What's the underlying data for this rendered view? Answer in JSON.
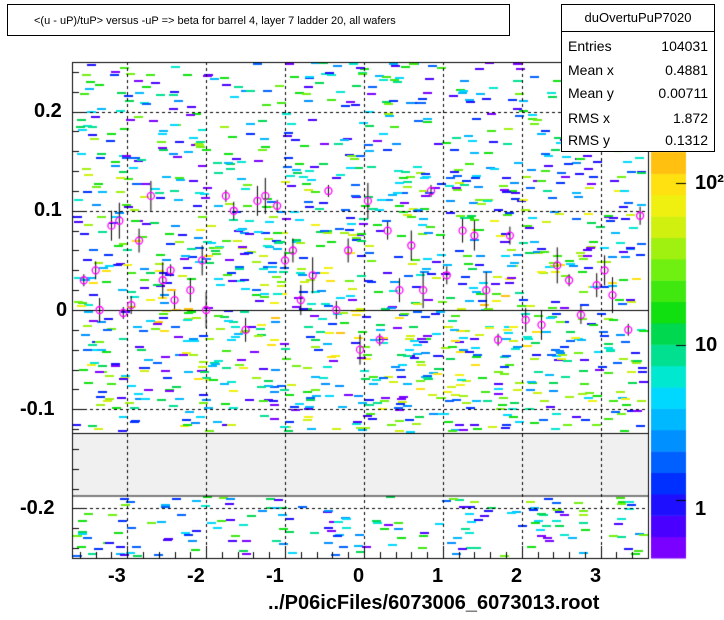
{
  "title": "<(u - uP)/tuP> versus  -uP => beta for barrel 4, layer 7 ladder 20, all wafers",
  "footer": "../P06icFiles/6073006_6073013.root",
  "stats": {
    "name": "duOvertuPuP7020",
    "rows": [
      {
        "key": "Entries",
        "value": "104031"
      },
      {
        "key": "Mean x",
        "value": "0.4881"
      },
      {
        "key": "Mean y",
        "value": "0.00711"
      },
      {
        "key": "RMS x",
        "value": "1.872"
      },
      {
        "key": "RMS y",
        "value": "0.1312"
      }
    ]
  },
  "colorbar": {
    "labels": [
      "1",
      "10",
      "10²"
    ],
    "colors": [
      "#7a00ff",
      "#4a00ff",
      "#1e10ff",
      "#0030ff",
      "#0060ff",
      "#0090ff",
      "#00b8ff",
      "#00d8ff",
      "#00e8d0",
      "#00e090",
      "#00d850",
      "#10e010",
      "#40e810",
      "#70f010",
      "#a0f010",
      "#d0f010",
      "#f0f010",
      "#ffe010",
      "#ffc010"
    ]
  },
  "chart_data": {
    "type": "heatmap",
    "title": "<(u - uP)/tuP> versus  -uP => beta for barrel 4, layer 7 ladder 20, all wafers",
    "xlim": [
      -3.7,
      3.6
    ],
    "ylim": [
      -0.25,
      0.25
    ],
    "xticks": [
      -3,
      -2,
      -1,
      0,
      1,
      2,
      3
    ],
    "yticks": [
      -0.2,
      -0.1,
      0,
      0.1,
      0.2
    ],
    "xtick_labels": [
      "-3",
      "-2",
      "-1",
      "0",
      "1",
      "2",
      "3"
    ],
    "ytick_labels": [
      "-0.2",
      "-0.1",
      "0",
      "0.1",
      "0.2"
    ],
    "grid": true,
    "z_scale": "log",
    "empty_band_y": [
      -0.187,
      -0.124
    ],
    "profile_points": [
      {
        "x": -3.55,
        "y": 0.03
      },
      {
        "x": -3.4,
        "y": 0.04
      },
      {
        "x": -3.35,
        "y": 0.0
      },
      {
        "x": -3.2,
        "y": 0.085
      },
      {
        "x": -3.1,
        "y": 0.09
      },
      {
        "x": -3.05,
        "y": -0.003
      },
      {
        "x": -2.95,
        "y": 0.005
      },
      {
        "x": -2.85,
        "y": 0.07
      },
      {
        "x": -2.7,
        "y": 0.115
      },
      {
        "x": -2.55,
        "y": 0.03
      },
      {
        "x": -2.45,
        "y": 0.04
      },
      {
        "x": -2.4,
        "y": 0.01
      },
      {
        "x": -2.2,
        "y": 0.02
      },
      {
        "x": -2.05,
        "y": 0.05
      },
      {
        "x": -2.0,
        "y": 0.0
      },
      {
        "x": -1.75,
        "y": 0.115
      },
      {
        "x": -1.65,
        "y": 0.1
      },
      {
        "x": -1.5,
        "y": -0.02
      },
      {
        "x": -1.35,
        "y": 0.11
      },
      {
        "x": -1.25,
        "y": 0.115
      },
      {
        "x": -1.1,
        "y": 0.105
      },
      {
        "x": -1.0,
        "y": 0.05
      },
      {
        "x": -0.9,
        "y": 0.06
      },
      {
        "x": -0.8,
        "y": 0.01
      },
      {
        "x": -0.65,
        "y": 0.035
      },
      {
        "x": -0.45,
        "y": 0.12
      },
      {
        "x": -0.35,
        "y": 0.0
      },
      {
        "x": -0.2,
        "y": 0.06
      },
      {
        "x": -0.05,
        "y": -0.04
      },
      {
        "x": 0.05,
        "y": 0.11
      },
      {
        "x": 0.2,
        "y": -0.03
      },
      {
        "x": 0.3,
        "y": 0.08
      },
      {
        "x": 0.45,
        "y": 0.02
      },
      {
        "x": 0.6,
        "y": 0.065
      },
      {
        "x": 0.75,
        "y": 0.02
      },
      {
        "x": 0.85,
        "y": 0.12
      },
      {
        "x": 1.05,
        "y": 0.035
      },
      {
        "x": 1.25,
        "y": 0.08
      },
      {
        "x": 1.4,
        "y": 0.075
      },
      {
        "x": 1.55,
        "y": 0.02
      },
      {
        "x": 1.7,
        "y": -0.03
      },
      {
        "x": 1.85,
        "y": 0.075
      },
      {
        "x": 2.05,
        "y": -0.01
      },
      {
        "x": 2.25,
        "y": -0.015
      },
      {
        "x": 2.45,
        "y": 0.045
      },
      {
        "x": 2.6,
        "y": 0.03
      },
      {
        "x": 2.75,
        "y": -0.005
      },
      {
        "x": 2.95,
        "y": 0.025
      },
      {
        "x": 3.05,
        "y": 0.04
      },
      {
        "x": 3.15,
        "y": 0.015
      },
      {
        "x": 3.35,
        "y": -0.02
      },
      {
        "x": 3.5,
        "y": 0.095
      }
    ]
  }
}
